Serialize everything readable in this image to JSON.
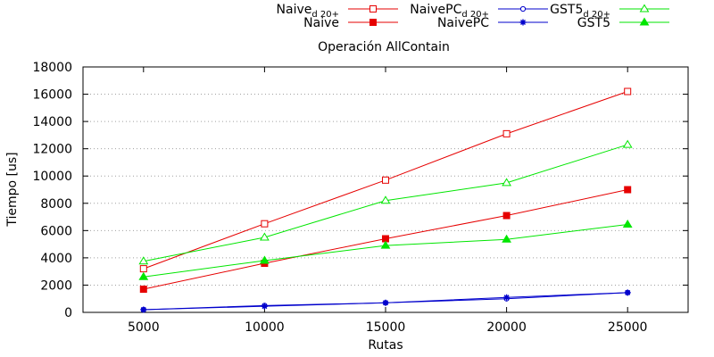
{
  "chart_data": {
    "type": "line",
    "title": "Operación AllContain",
    "xlabel": "Rutas",
    "ylabel": "Tiempo [us]",
    "x": [
      5000,
      10000,
      15000,
      20000,
      25000
    ],
    "x_ticks": [
      5000,
      10000,
      15000,
      20000,
      25000
    ],
    "y_ticks": [
      0,
      2000,
      4000,
      6000,
      8000,
      10000,
      12000,
      14000,
      16000,
      18000
    ],
    "xlim": [
      2500,
      27500
    ],
    "ylim": [
      0,
      18000
    ],
    "grid": "horizontal",
    "legend_position": "top",
    "series": [
      {
        "name": "Naive",
        "subscript": "d 20+",
        "color": "#e60000",
        "marker": "open-square",
        "values": [
          3200,
          6500,
          9700,
          13100,
          16200
        ]
      },
      {
        "name": "Naive",
        "subscript": "",
        "color": "#e60000",
        "marker": "filled-square",
        "values": [
          1700,
          3600,
          5400,
          7100,
          9000
        ]
      },
      {
        "name": "NaivePC",
        "subscript": "d 20+",
        "color": "#0000cc",
        "marker": "open-circle",
        "values": [
          200,
          500,
          700,
          1000,
          1450
        ]
      },
      {
        "name": "NaivePC",
        "subscript": "",
        "color": "#0000cc",
        "marker": "star",
        "values": [
          200,
          450,
          700,
          1100,
          1450
        ]
      },
      {
        "name": "GST5",
        "subscript": "d 20+",
        "color": "#00e600",
        "marker": "open-triangle",
        "values": [
          3750,
          5500,
          8200,
          9500,
          12300
        ]
      },
      {
        "name": "GST5",
        "subscript": "",
        "color": "#00e600",
        "marker": "filled-triangle",
        "values": [
          2600,
          3800,
          4900,
          5350,
          6450
        ]
      }
    ]
  }
}
